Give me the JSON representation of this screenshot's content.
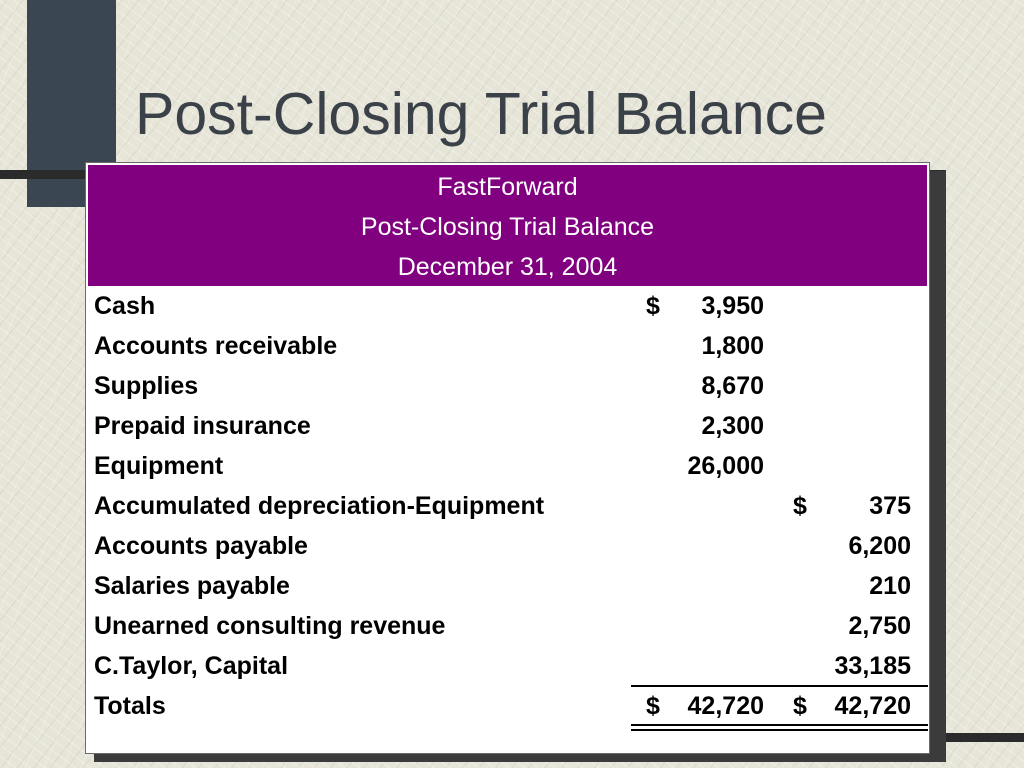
{
  "slide": {
    "title": "Post-Closing Trial Balance"
  },
  "statement": {
    "company": "FastForward",
    "name": "Post-Closing Trial Balance",
    "date": "December 31, 2004"
  },
  "rows": [
    {
      "account": "Cash",
      "debit_sign": "$",
      "debit": "3,950",
      "credit_sign": "",
      "credit": ""
    },
    {
      "account": "Accounts receivable",
      "debit_sign": "",
      "debit": "1,800",
      "credit_sign": "",
      "credit": ""
    },
    {
      "account": "Supplies",
      "debit_sign": "",
      "debit": "8,670",
      "credit_sign": "",
      "credit": ""
    },
    {
      "account": "Prepaid insurance",
      "debit_sign": "",
      "debit": "2,300",
      "credit_sign": "",
      "credit": ""
    },
    {
      "account": "Equipment",
      "debit_sign": "",
      "debit": "26,000",
      "credit_sign": "",
      "credit": ""
    },
    {
      "account": "Accumulated depreciation-Equipment",
      "debit_sign": "",
      "debit": "",
      "credit_sign": "$",
      "credit": "375"
    },
    {
      "account": "Accounts payable",
      "debit_sign": "",
      "debit": "",
      "credit_sign": "",
      "credit": "6,200"
    },
    {
      "account": "Salaries payable",
      "debit_sign": "",
      "debit": "",
      "credit_sign": "",
      "credit": "210"
    },
    {
      "account": "Unearned consulting revenue",
      "debit_sign": "",
      "debit": "",
      "credit_sign": "",
      "credit": "2,750"
    },
    {
      "account": "C.Taylor, Capital",
      "debit_sign": "",
      "debit": "",
      "credit_sign": "",
      "credit": "33,185"
    }
  ],
  "totals": {
    "label": "Totals",
    "debit_sign": "$",
    "debit": "42,720",
    "credit_sign": "$",
    "credit": "42,720"
  },
  "colors": {
    "header_background": "#800080",
    "header_text": "#ffffff",
    "title_text": "#3a4148",
    "accent_bar": "#3a4753"
  }
}
